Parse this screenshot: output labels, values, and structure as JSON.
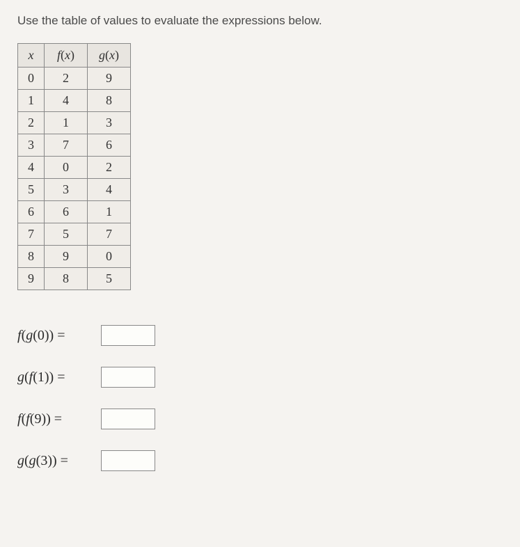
{
  "instruction": "Use the table of values to evaluate the expressions below.",
  "table": {
    "headers": {
      "x": "x",
      "fx": "f(x)",
      "gx": "g(x)"
    },
    "rows": [
      {
        "x": "0",
        "fx": "2",
        "gx": "9"
      },
      {
        "x": "1",
        "fx": "4",
        "gx": "8"
      },
      {
        "x": "2",
        "fx": "1",
        "gx": "3"
      },
      {
        "x": "3",
        "fx": "7",
        "gx": "6"
      },
      {
        "x": "4",
        "fx": "0",
        "gx": "2"
      },
      {
        "x": "5",
        "fx": "3",
        "gx": "4"
      },
      {
        "x": "6",
        "fx": "6",
        "gx": "1"
      },
      {
        "x": "7",
        "fx": "5",
        "gx": "7"
      },
      {
        "x": "8",
        "fx": "9",
        "gx": "0"
      },
      {
        "x": "9",
        "fx": "8",
        "gx": "5"
      }
    ],
    "col_widths": {
      "x": 38,
      "fx": 62,
      "gx": 62
    },
    "border_color": "#888888",
    "header_bg": "#e8e5e0",
    "cell_bg": "#f0ede8",
    "font_size": 18
  },
  "expressions": [
    {
      "label": "f(g(0)) =",
      "value": ""
    },
    {
      "label": "g(f(1)) =",
      "value": ""
    },
    {
      "label": "f(f(9)) =",
      "value": ""
    },
    {
      "label": "g(g(3)) =",
      "value": ""
    }
  ],
  "colors": {
    "page_bg": "#f5f3f0",
    "text": "#3a3a3a",
    "input_bg": "#fdfdfa",
    "input_border": "#888888"
  },
  "typography": {
    "instruction_fontsize": 17,
    "table_fontsize": 18,
    "expression_fontsize": 20,
    "math_font": "Times New Roman"
  }
}
